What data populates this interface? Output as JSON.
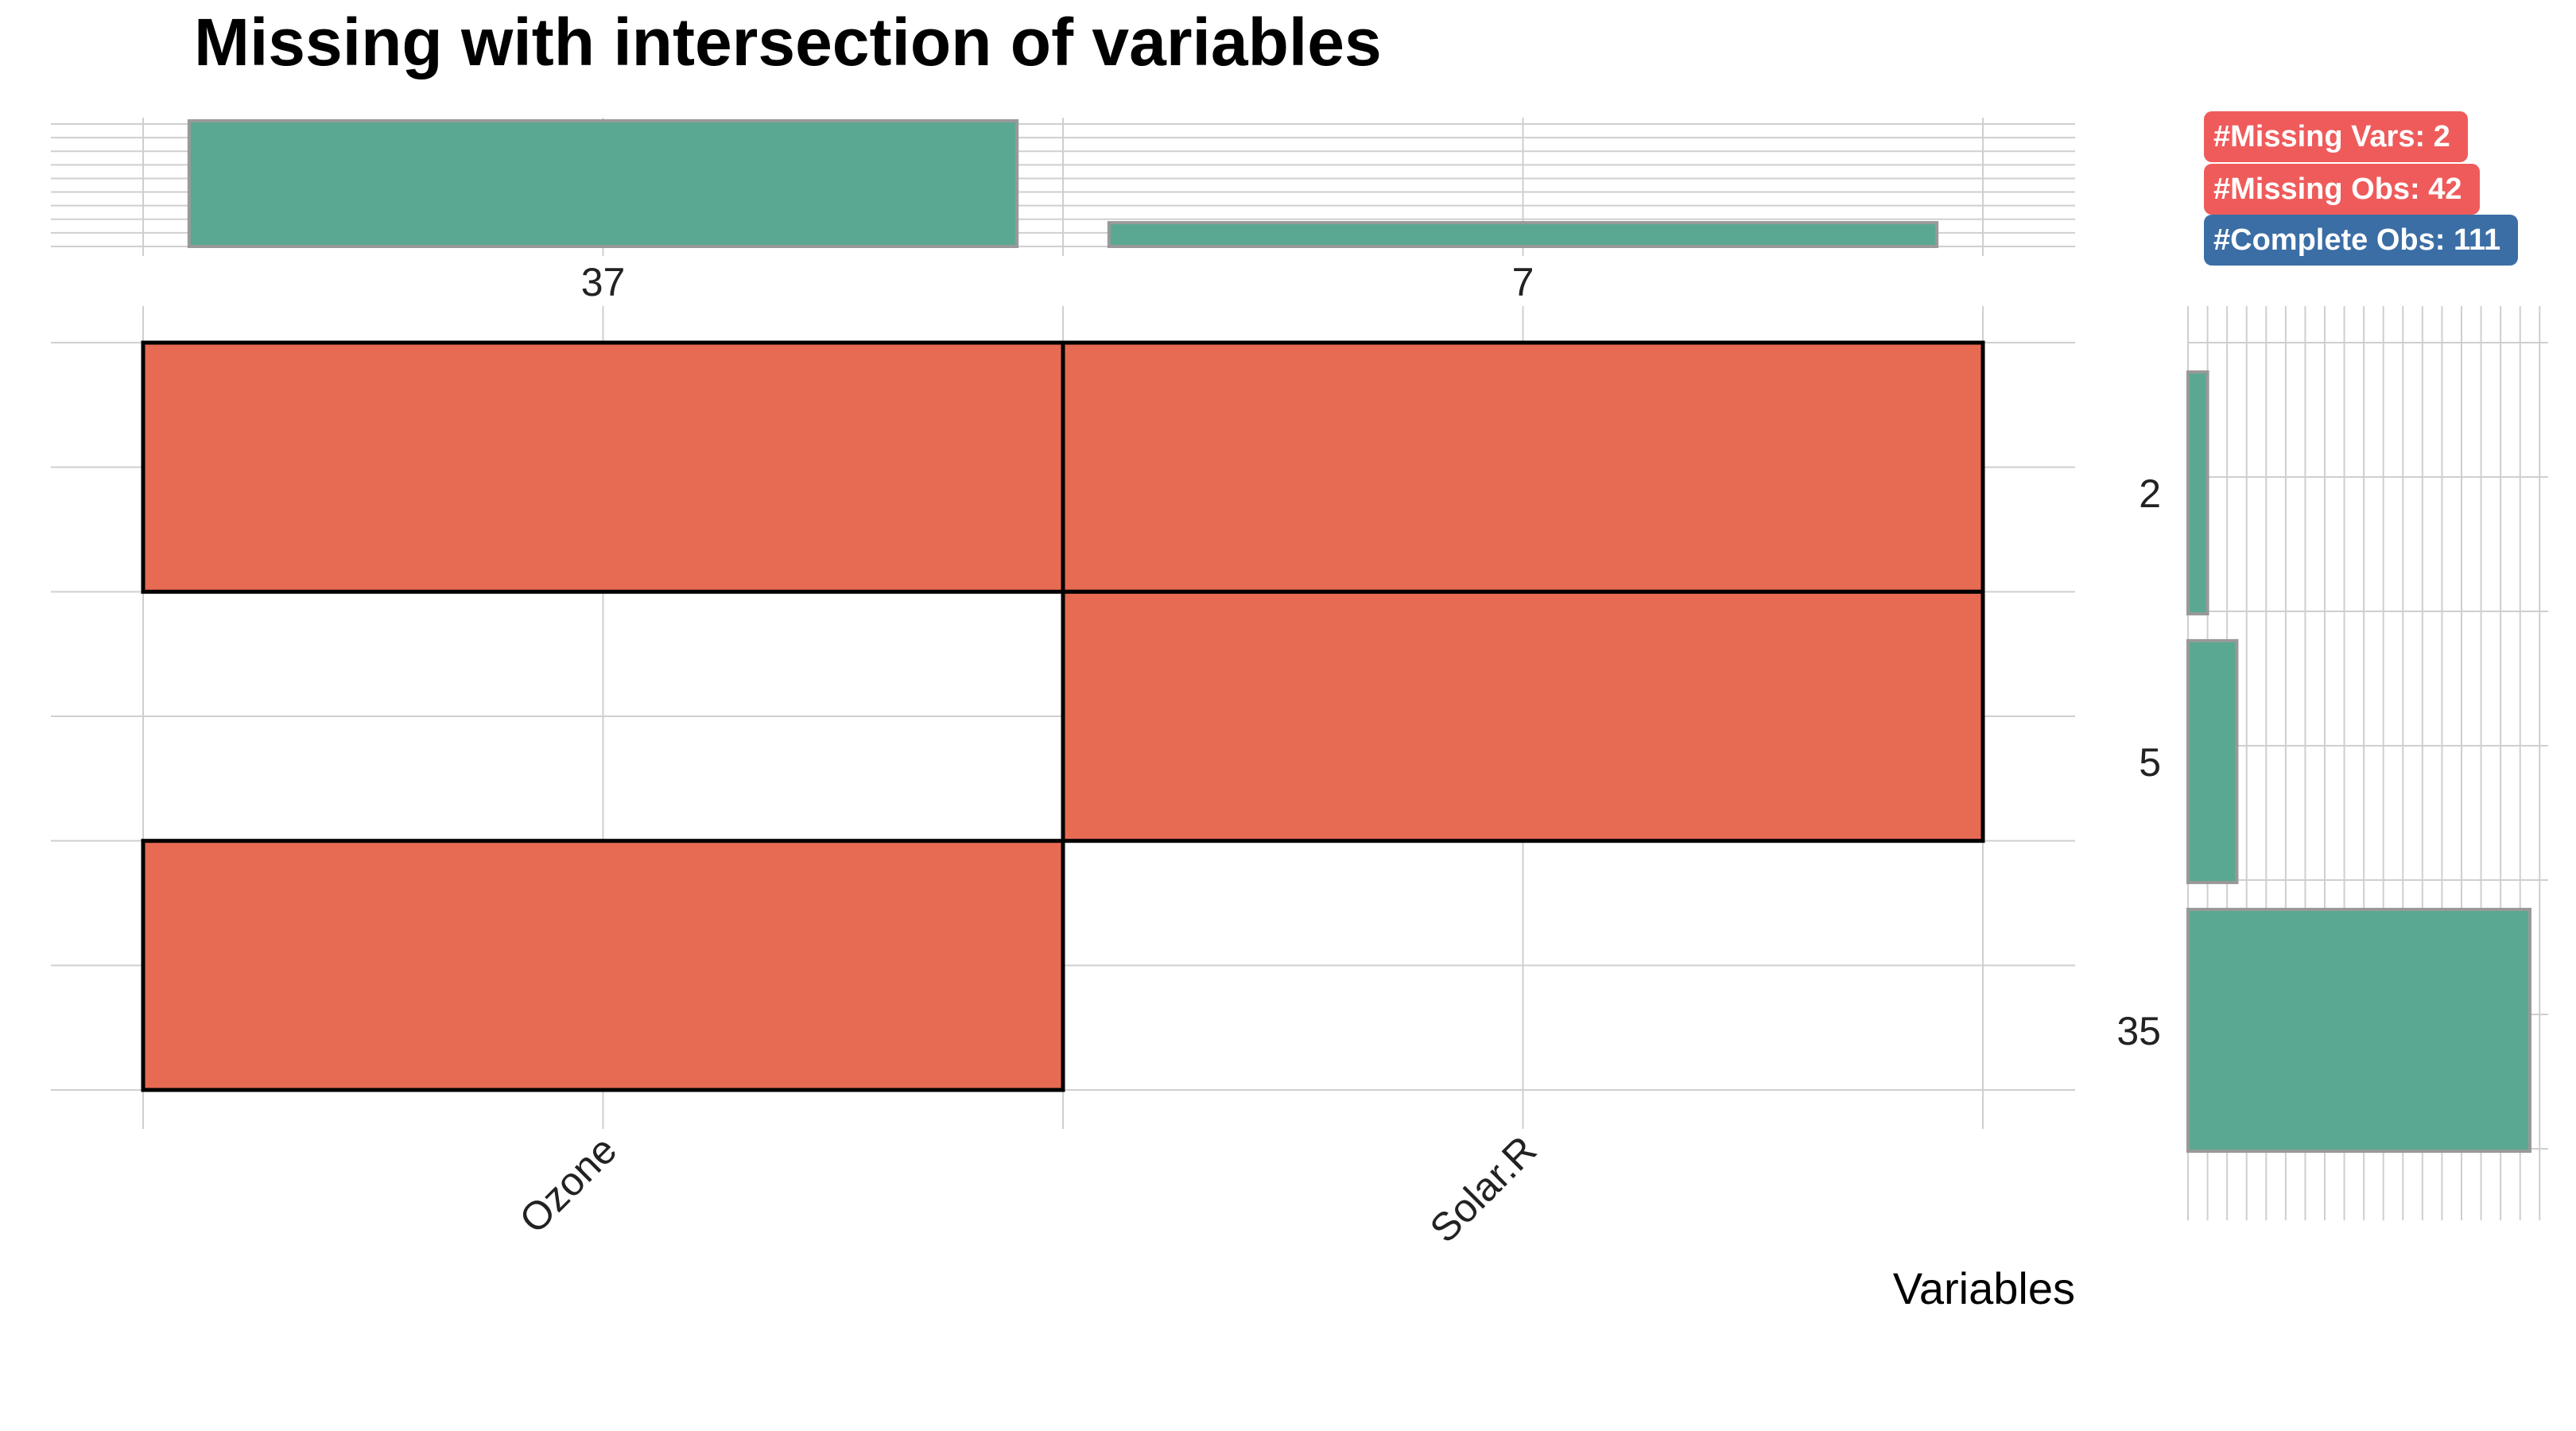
{
  "chart_data": {
    "type": "heatmap",
    "title": "Missing with intersection of variables",
    "xlabel": "Variables",
    "variables": [
      "Ozone",
      "Solar.R"
    ],
    "variable_missing_counts": [
      37,
      7
    ],
    "intersections": [
      {
        "count": 2,
        "missing": [
          "Ozone",
          "Solar.R"
        ]
      },
      {
        "count": 5,
        "missing": [
          "Solar.R"
        ]
      },
      {
        "count": 35,
        "missing": [
          "Ozone"
        ]
      }
    ],
    "intersection_count_max": 35,
    "colors": {
      "missing_cell": "#e76a53",
      "bar_fill": "#5aa891",
      "bar_stroke": "#999999",
      "grid": "#cfcfcf"
    }
  },
  "badges": [
    {
      "label": "#Missing Vars: 2",
      "color": "#ef5b5b"
    },
    {
      "label": "#Missing Obs: 42",
      "color": "#ef5b5b"
    },
    {
      "label": "#Complete Obs: 111",
      "color": "#3b6ea5"
    }
  ]
}
